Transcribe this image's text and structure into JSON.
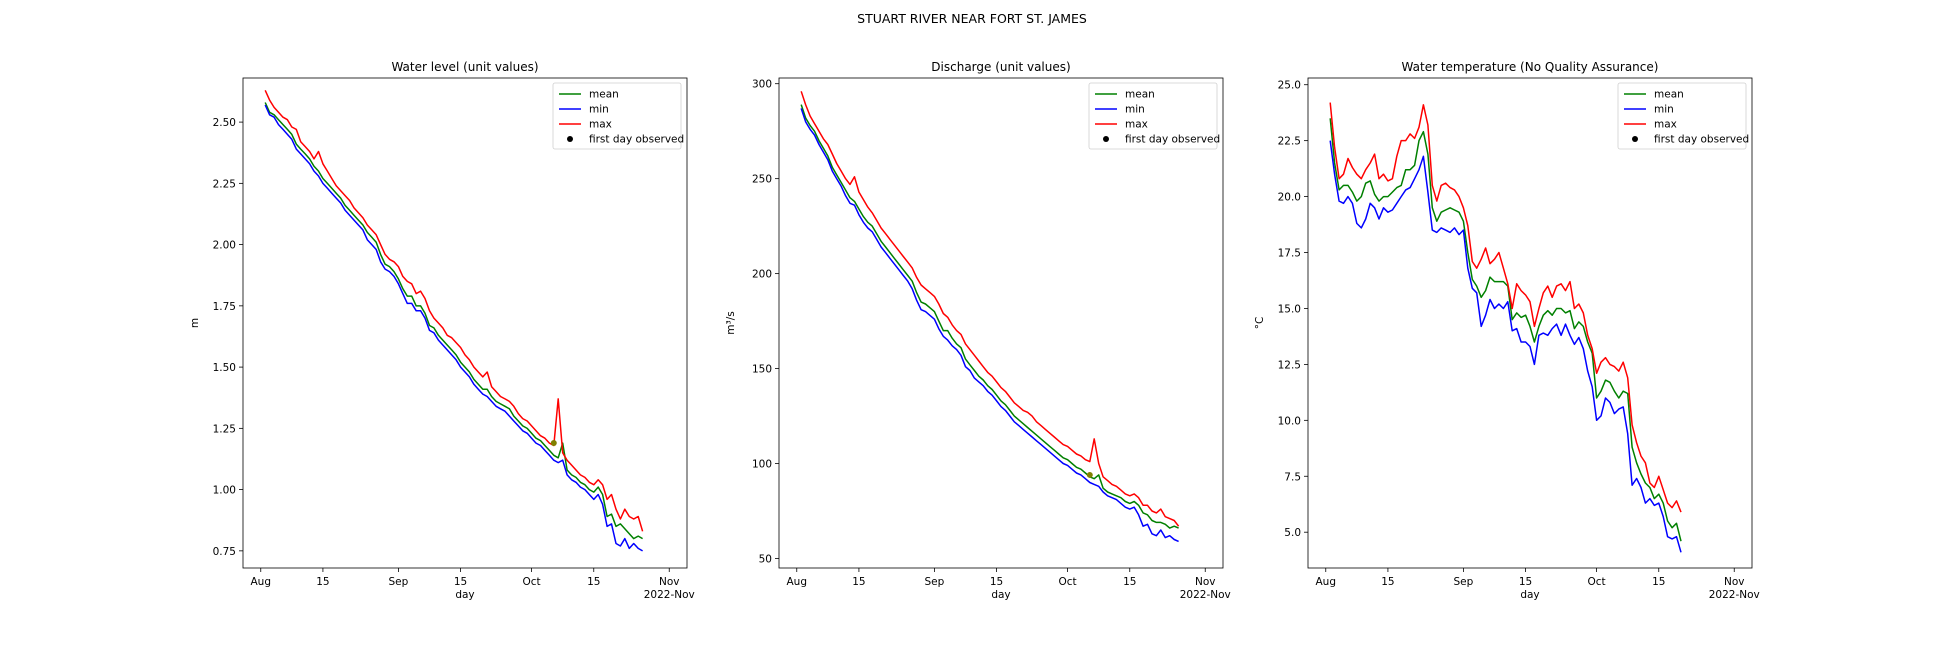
{
  "figure": {
    "title": "STUART RIVER NEAR FORT ST. JAMES"
  },
  "legend": [
    "mean",
    "min",
    "max",
    "first day observed"
  ],
  "colors": {
    "mean": "#008000",
    "min": "#0000ff",
    "max": "#ff0000",
    "marker": "#000000"
  },
  "chart_data": [
    {
      "type": "line",
      "title": "Water level (unit values)",
      "xlabel": "day",
      "ylabel": "m",
      "x_ticks": [
        {
          "day": 0,
          "label": "Aug"
        },
        {
          "day": 14,
          "label": "15"
        },
        {
          "day": 31,
          "label": "Sep"
        },
        {
          "day": 45,
          "label": "15"
        },
        {
          "day": 61,
          "label": "Oct"
        },
        {
          "day": 75,
          "label": "15"
        },
        {
          "day": 92,
          "label": "Nov",
          "sublabel": "2022-Nov"
        }
      ],
      "xlim": [
        -4,
        96
      ],
      "ylim": [
        0.68,
        2.68
      ],
      "y_ticks": [
        "0.75",
        "1.00",
        "1.25",
        "1.50",
        "1.75",
        "2.00",
        "2.25",
        "2.50"
      ],
      "legend_position": "upper right",
      "day_start": 1,
      "series": [
        {
          "name": "mean",
          "values": [
            2.58,
            2.54,
            2.53,
            2.51,
            2.49,
            2.47,
            2.45,
            2.41,
            2.39,
            2.37,
            2.35,
            2.32,
            2.3,
            2.27,
            2.25,
            2.23,
            2.21,
            2.19,
            2.16,
            2.14,
            2.12,
            2.1,
            2.08,
            2.05,
            2.03,
            2.01,
            1.96,
            1.92,
            1.91,
            1.89,
            1.86,
            1.82,
            1.79,
            1.79,
            1.75,
            1.75,
            1.72,
            1.67,
            1.66,
            1.63,
            1.61,
            1.59,
            1.57,
            1.55,
            1.52,
            1.5,
            1.48,
            1.45,
            1.43,
            1.41,
            1.41,
            1.38,
            1.36,
            1.35,
            1.34,
            1.33,
            1.3,
            1.28,
            1.26,
            1.25,
            1.23,
            1.21,
            1.2,
            1.18,
            1.16,
            1.14,
            1.13,
            1.19,
            1.08,
            1.06,
            1.05,
            1.03,
            1.02,
            1.0,
            0.99,
            1.01,
            0.98,
            0.89,
            0.9,
            0.85,
            0.86,
            0.84,
            0.82,
            0.8,
            0.81,
            0.8
          ]
        },
        {
          "name": "min",
          "values": [
            2.57,
            2.53,
            2.52,
            2.49,
            2.47,
            2.45,
            2.43,
            2.39,
            2.37,
            2.35,
            2.33,
            2.3,
            2.28,
            2.25,
            2.23,
            2.21,
            2.19,
            2.17,
            2.14,
            2.12,
            2.1,
            2.08,
            2.06,
            2.02,
            2.0,
            1.98,
            1.93,
            1.9,
            1.89,
            1.87,
            1.84,
            1.8,
            1.76,
            1.76,
            1.73,
            1.73,
            1.7,
            1.65,
            1.64,
            1.61,
            1.59,
            1.57,
            1.55,
            1.53,
            1.5,
            1.48,
            1.46,
            1.43,
            1.41,
            1.39,
            1.38,
            1.36,
            1.34,
            1.33,
            1.32,
            1.3,
            1.28,
            1.26,
            1.24,
            1.23,
            1.21,
            1.19,
            1.18,
            1.16,
            1.14,
            1.12,
            1.11,
            1.12,
            1.06,
            1.04,
            1.03,
            1.01,
            1.0,
            0.98,
            0.96,
            0.98,
            0.94,
            0.85,
            0.86,
            0.78,
            0.77,
            0.8,
            0.76,
            0.78,
            0.76,
            0.75
          ]
        },
        {
          "name": "max",
          "values": [
            2.63,
            2.59,
            2.56,
            2.54,
            2.52,
            2.51,
            2.48,
            2.47,
            2.42,
            2.4,
            2.38,
            2.35,
            2.38,
            2.33,
            2.3,
            2.27,
            2.24,
            2.22,
            2.2,
            2.18,
            2.15,
            2.13,
            2.11,
            2.08,
            2.06,
            2.04,
            2.0,
            1.96,
            1.94,
            1.93,
            1.91,
            1.87,
            1.85,
            1.84,
            1.8,
            1.81,
            1.78,
            1.73,
            1.7,
            1.68,
            1.66,
            1.63,
            1.62,
            1.6,
            1.58,
            1.55,
            1.53,
            1.5,
            1.48,
            1.46,
            1.48,
            1.42,
            1.4,
            1.38,
            1.37,
            1.36,
            1.34,
            1.31,
            1.29,
            1.28,
            1.26,
            1.24,
            1.22,
            1.21,
            1.19,
            1.18,
            1.37,
            1.15,
            1.12,
            1.1,
            1.08,
            1.06,
            1.05,
            1.03,
            1.02,
            1.04,
            1.02,
            0.96,
            0.98,
            0.92,
            0.88,
            0.92,
            0.89,
            0.88,
            0.89,
            0.83
          ]
        }
      ],
      "first_day_observed": [
        {
          "day": 66,
          "value": 1.19
        }
      ]
    },
    {
      "type": "line",
      "title": "Discharge (unit values)",
      "xlabel": "day",
      "ylabel": "m³/s",
      "x_ticks": [
        {
          "day": 0,
          "label": "Aug"
        },
        {
          "day": 14,
          "label": "15"
        },
        {
          "day": 31,
          "label": "Sep"
        },
        {
          "day": 45,
          "label": "15"
        },
        {
          "day": 61,
          "label": "Oct"
        },
        {
          "day": 75,
          "label": "15"
        },
        {
          "day": 92,
          "label": "Nov",
          "sublabel": "2022-Nov"
        }
      ],
      "xlim": [
        -4,
        96
      ],
      "ylim": [
        45,
        303
      ],
      "y_ticks": [
        "50",
        "100",
        "150",
        "200",
        "250",
        "300"
      ],
      "legend_position": "upper right",
      "day_start": 1,
      "series": [
        {
          "name": "mean",
          "values": [
            289,
            282,
            278,
            275,
            270,
            266,
            262,
            256,
            252,
            248,
            244,
            240,
            238,
            234,
            230,
            227,
            225,
            221,
            217,
            214,
            211,
            208,
            205,
            202,
            199,
            196,
            190,
            185,
            184,
            182,
            180,
            175,
            170,
            170,
            166,
            163,
            161,
            155,
            152,
            149,
            146,
            144,
            141,
            139,
            136,
            133,
            131,
            128,
            125,
            123,
            121,
            119,
            117,
            115,
            113,
            111,
            109,
            107,
            105,
            103,
            102,
            100,
            98,
            97,
            95,
            93,
            92,
            94,
            87,
            85,
            84,
            83,
            82,
            80,
            79,
            80,
            78,
            74,
            73,
            70,
            69,
            69,
            68,
            66,
            67,
            66
          ]
        },
        {
          "name": "min",
          "values": [
            287,
            280,
            276,
            273,
            268,
            264,
            260,
            254,
            250,
            246,
            241,
            237,
            236,
            231,
            227,
            224,
            222,
            218,
            214,
            211,
            208,
            205,
            202,
            199,
            196,
            192,
            186,
            181,
            180,
            178,
            176,
            171,
            167,
            165,
            162,
            160,
            157,
            151,
            149,
            145,
            143,
            141,
            138,
            136,
            133,
            130,
            128,
            125,
            122,
            120,
            118,
            116,
            114,
            112,
            110,
            108,
            106,
            104,
            102,
            100,
            99,
            97,
            95,
            94,
            92,
            90,
            89,
            88,
            85,
            83,
            82,
            81,
            79,
            77,
            76,
            77,
            73,
            67,
            68,
            63,
            62,
            65,
            61,
            62,
            60,
            59
          ]
        },
        {
          "name": "max",
          "values": [
            296,
            289,
            283,
            279,
            275,
            271,
            268,
            263,
            258,
            254,
            250,
            247,
            251,
            243,
            239,
            235,
            232,
            228,
            224,
            221,
            218,
            215,
            212,
            209,
            206,
            203,
            198,
            194,
            192,
            190,
            188,
            184,
            179,
            177,
            173,
            170,
            168,
            163,
            160,
            157,
            154,
            151,
            148,
            146,
            143,
            140,
            138,
            135,
            132,
            130,
            128,
            127,
            125,
            122,
            120,
            118,
            116,
            114,
            112,
            110,
            109,
            107,
            105,
            104,
            102,
            101,
            113,
            100,
            93,
            91,
            89,
            88,
            86,
            84,
            83,
            84,
            82,
            78,
            78,
            75,
            74,
            76,
            72,
            71,
            70,
            67
          ]
        }
      ],
      "first_day_observed": [
        {
          "day": 66,
          "value": 94
        }
      ]
    },
    {
      "type": "line",
      "title": "Water temperature (No Quality Assurance)",
      "xlabel": "day",
      "ylabel": "°C",
      "x_ticks": [
        {
          "day": 0,
          "label": "Aug"
        },
        {
          "day": 14,
          "label": "15"
        },
        {
          "day": 31,
          "label": "Sep"
        },
        {
          "day": 45,
          "label": "15"
        },
        {
          "day": 61,
          "label": "Oct"
        },
        {
          "day": 75,
          "label": "15"
        },
        {
          "day": 92,
          "label": "Nov",
          "sublabel": "2022-Nov"
        }
      ],
      "xlim": [
        -4,
        96
      ],
      "ylim": [
        3.4,
        25.3
      ],
      "y_ticks": [
        "5.0",
        "7.5",
        "10.0",
        "12.5",
        "15.0",
        "17.5",
        "20.0",
        "22.5",
        "25.0"
      ],
      "legend_position": "upper right",
      "day_start": 1,
      "series": [
        {
          "name": "mean",
          "values": [
            23.5,
            21.5,
            20.3,
            20.5,
            20.5,
            20.2,
            19.8,
            20.0,
            20.6,
            20.7,
            20.1,
            19.8,
            20.0,
            20.0,
            20.2,
            20.4,
            20.5,
            21.2,
            21.2,
            21.4,
            22.5,
            22.9,
            21.9,
            19.5,
            18.9,
            19.3,
            19.4,
            19.5,
            19.4,
            19.3,
            18.9,
            17.5,
            16.3,
            16.0,
            15.5,
            15.8,
            16.4,
            16.2,
            16.2,
            16.2,
            16.0,
            14.5,
            14.8,
            14.6,
            14.7,
            14.2,
            13.5,
            14.2,
            14.7,
            14.9,
            14.7,
            15.0,
            15.0,
            14.8,
            14.9,
            14.1,
            14.4,
            14.2,
            13.5,
            13.0,
            11.0,
            11.3,
            11.8,
            11.7,
            11.3,
            11.0,
            11.3,
            11.2,
            8.8,
            8.1,
            7.6,
            7.2,
            7.0,
            6.5,
            6.7,
            6.3,
            5.5,
            5.2,
            5.4,
            4.6
          ]
        },
        {
          "name": "min",
          "values": [
            22.5,
            21.0,
            19.8,
            19.7,
            20.0,
            19.7,
            18.8,
            18.6,
            19.0,
            19.7,
            19.5,
            19.0,
            19.5,
            19.3,
            19.4,
            19.7,
            20.0,
            20.3,
            20.4,
            20.8,
            21.2,
            21.8,
            20.2,
            18.5,
            18.4,
            18.6,
            18.5,
            18.4,
            18.6,
            18.3,
            18.5,
            16.8,
            15.9,
            15.7,
            14.2,
            14.7,
            15.4,
            15.0,
            15.2,
            15.0,
            15.3,
            14.0,
            14.1,
            13.5,
            13.5,
            13.3,
            12.5,
            13.8,
            13.9,
            13.8,
            14.1,
            14.3,
            13.8,
            14.3,
            13.8,
            13.4,
            13.7,
            13.2,
            12.2,
            11.5,
            10.0,
            10.2,
            11.0,
            10.8,
            10.3,
            10.5,
            10.6,
            9.4,
            7.1,
            7.4,
            7.0,
            6.3,
            6.5,
            6.2,
            6.3,
            5.7,
            4.8,
            4.7,
            4.8,
            4.1
          ]
        },
        {
          "name": "max",
          "values": [
            24.2,
            22.2,
            20.8,
            21.0,
            21.7,
            21.3,
            21.0,
            20.8,
            21.2,
            21.5,
            21.9,
            20.8,
            21.0,
            20.7,
            20.8,
            21.8,
            22.5,
            22.5,
            22.8,
            22.6,
            23.1,
            24.1,
            23.2,
            20.5,
            19.8,
            20.5,
            20.6,
            20.4,
            20.3,
            20.0,
            19.5,
            18.7,
            17.1,
            16.8,
            17.2,
            17.7,
            17.0,
            17.2,
            17.5,
            16.8,
            16.1,
            15.0,
            16.1,
            15.8,
            15.6,
            15.3,
            14.2,
            15.0,
            15.7,
            16.0,
            15.5,
            16.0,
            16.1,
            15.8,
            16.2,
            15.0,
            15.2,
            14.8,
            13.8,
            13.2,
            12.1,
            12.6,
            12.8,
            12.5,
            12.4,
            12.2,
            12.6,
            11.9,
            9.8,
            9.0,
            8.4,
            8.1,
            7.2,
            7.0,
            7.5,
            6.9,
            6.3,
            6.1,
            6.4,
            5.9
          ]
        }
      ],
      "first_day_observed": []
    }
  ]
}
